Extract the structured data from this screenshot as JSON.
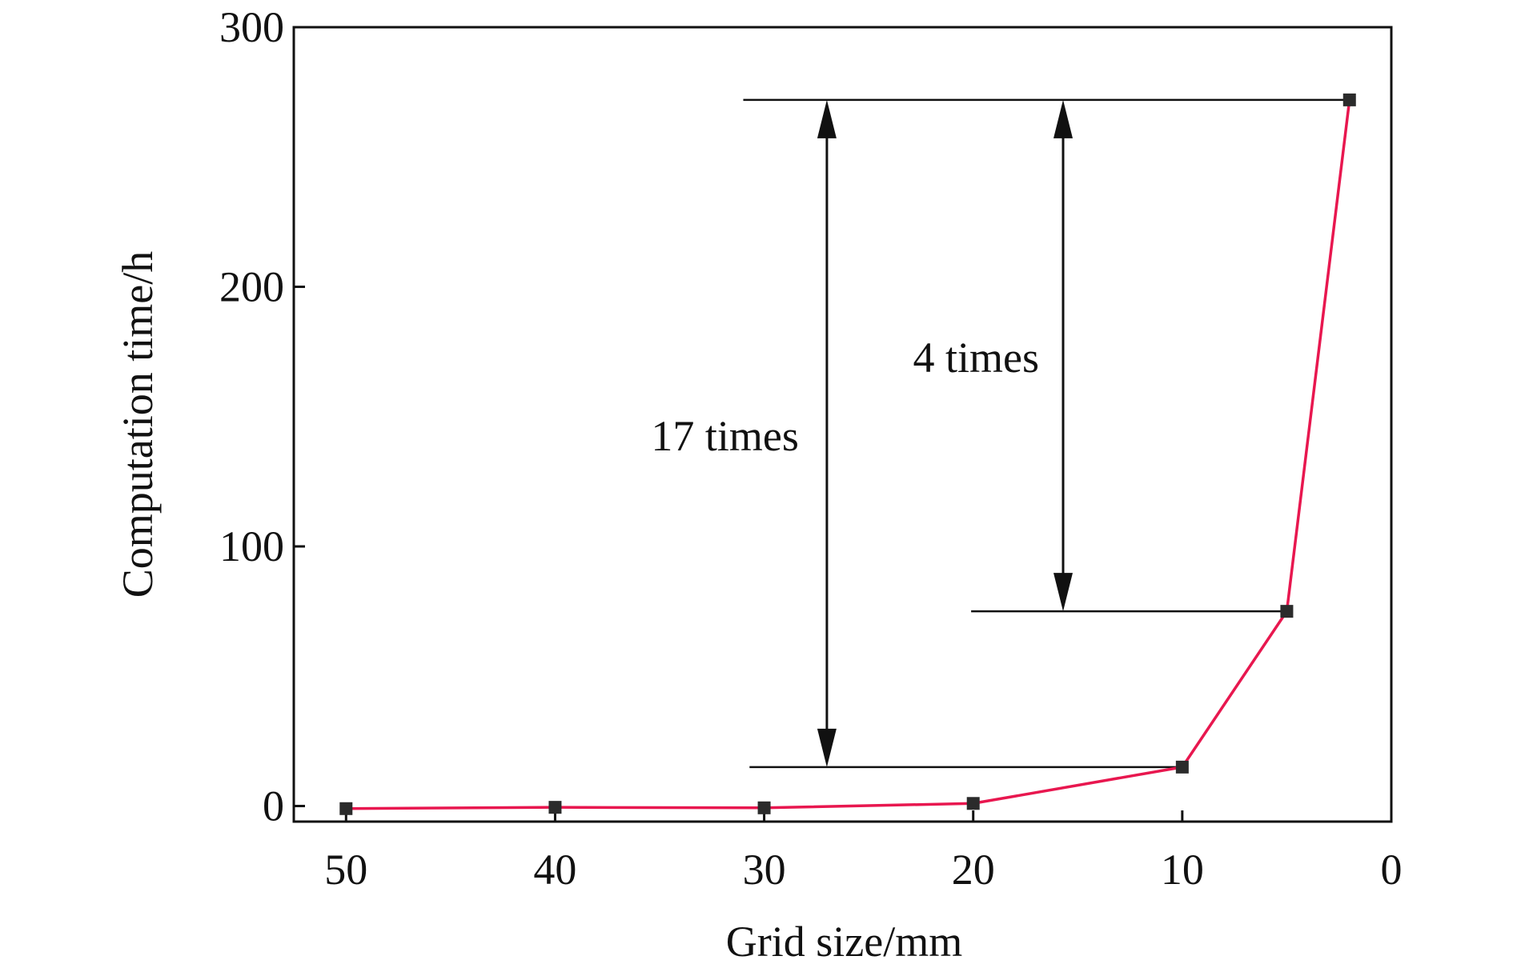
{
  "chart_data": {
    "type": "line",
    "xlabel": "Grid size/mm",
    "ylabel": "Computation time/h",
    "xlim": [
      52.5,
      0
    ],
    "ylim": [
      -6,
      300
    ],
    "x_ticks": [
      50,
      40,
      30,
      20,
      10,
      0
    ],
    "y_ticks": [
      0,
      100,
      200,
      300
    ],
    "grid": false,
    "series": [
      {
        "x": [
          50,
          40,
          30,
          20,
          10,
          5,
          2
        ],
        "y": [
          -1,
          -0.5,
          -0.7,
          1,
          15,
          75,
          272
        ],
        "color": "#e8174f",
        "marker": "square",
        "marker_color": "#2b2b2b"
      }
    ],
    "annotations": [
      {
        "label": "17 times",
        "from_y": 15,
        "to_y": 272,
        "at_x": 27,
        "ref_lines": [
          {
            "y": 272,
            "x_from": 31,
            "x_to": 2
          },
          {
            "y": 15,
            "x_from": 30.7,
            "x_to": 10
          }
        ]
      },
      {
        "label": "4 times",
        "from_y": 75,
        "to_y": 272,
        "at_x": 15.7,
        "ref_lines": [
          {
            "y": 75,
            "x_from": 20.1,
            "x_to": 5
          }
        ]
      }
    ]
  }
}
